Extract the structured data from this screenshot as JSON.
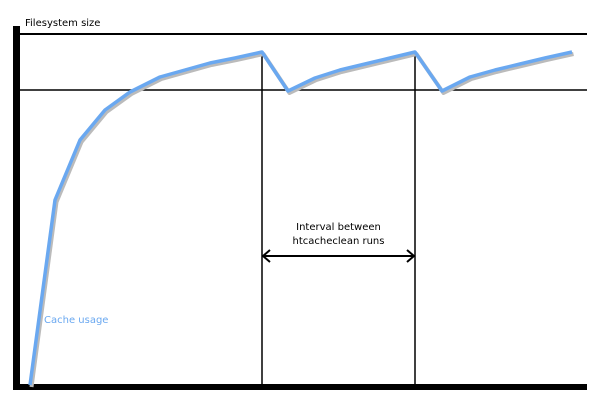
{
  "labels": {
    "y_axis": "Filesystem size",
    "interval_line1": "Interval between",
    "interval_line2": "htcacheclean runs",
    "series": "Cache usage"
  },
  "colors": {
    "curve": "#6aa8f0",
    "shadow": "#bbbbbb",
    "axis": "#000000"
  }
}
